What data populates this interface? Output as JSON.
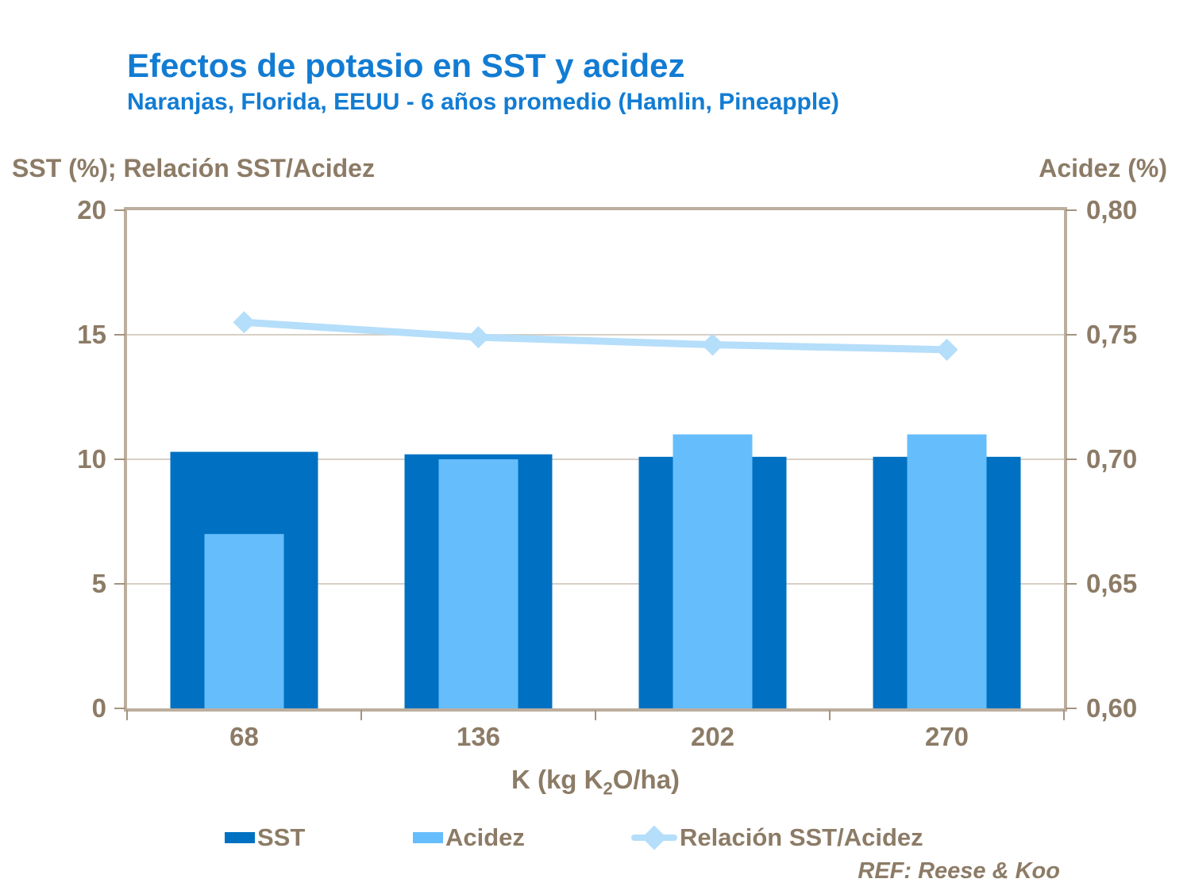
{
  "header": {
    "title": "Efectos de potasio en SST y acidez",
    "subtitle": "Naranjas, Florida, EEUU - 6 años promedio (Hamlin, Pineapple)"
  },
  "axes": {
    "left": {
      "title": "SST (%); Relación SST/Acidez",
      "ticks": [
        {
          "label": "20",
          "value": 20
        },
        {
          "label": "15",
          "value": 15
        },
        {
          "label": "10",
          "value": 10
        },
        {
          "label": "5",
          "value": 5
        },
        {
          "label": "0",
          "value": 0
        }
      ]
    },
    "right": {
      "title": "Acidez (%)",
      "ticks": [
        {
          "label": "0,80",
          "value": 0.8
        },
        {
          "label": "0,75",
          "value": 0.75
        },
        {
          "label": "0,70",
          "value": 0.7
        },
        {
          "label": "0,65",
          "value": 0.65
        },
        {
          "label": "0,60",
          "value": 0.6
        }
      ]
    },
    "x": {
      "title_prefix": "K (kg K",
      "title_sub": "2",
      "title_suffix": "O/ha)"
    }
  },
  "legend": {
    "items": [
      {
        "label": "SST",
        "marker": "bar",
        "color": "#0071C2"
      },
      {
        "label": "Acidez",
        "marker": "bar",
        "color": "#66BDFC"
      },
      {
        "label": "Relación SST/Acidez",
        "marker": "line-diamond",
        "color": "#B5DEFA"
      }
    ]
  },
  "footer": {
    "ref": "REF: Reese & Koo"
  },
  "colors": {
    "title_blue": "#127CD3",
    "text_brown": "#8C7B66",
    "sst_bar": "#0071C2",
    "acidez_bar": "#66BDFC",
    "ratio_line": "#B5DEFA",
    "frame": "#BCAE9E",
    "gridline": "#CCC1B4"
  },
  "chart_data": {
    "type": "combo",
    "title": "Efectos de potasio en SST y acidez",
    "subtitle": "Naranjas, Florida, EEUU - 6 años promedio (Hamlin, Pineapple)",
    "categories": [
      "68",
      "136",
      "202",
      "270"
    ],
    "xlabel": "K (kg K2O/ha)",
    "left_axis": {
      "label": "SST (%); Relación SST/Acidez",
      "range": [
        0,
        20
      ],
      "tick_step": 5
    },
    "right_axis": {
      "label": "Acidez (%)",
      "range": [
        0.6,
        0.8
      ],
      "tick_step": 0.05
    },
    "grid": true,
    "legend_position": "bottom",
    "series": [
      {
        "name": "SST",
        "type": "bar",
        "axis": "left",
        "color": "#0071C2",
        "values": [
          10.3,
          10.2,
          10.1,
          10.1
        ]
      },
      {
        "name": "Acidez",
        "type": "bar",
        "axis": "right",
        "color": "#66BDFC",
        "values": [
          0.67,
          0.7,
          0.71,
          0.71
        ]
      },
      {
        "name": "Relación SST/Acidez",
        "type": "line",
        "axis": "left",
        "color": "#B5DEFA",
        "marker": "diamond",
        "values": [
          15.5,
          14.9,
          14.6,
          14.4
        ]
      }
    ],
    "source": "REF: Reese & Koo"
  }
}
